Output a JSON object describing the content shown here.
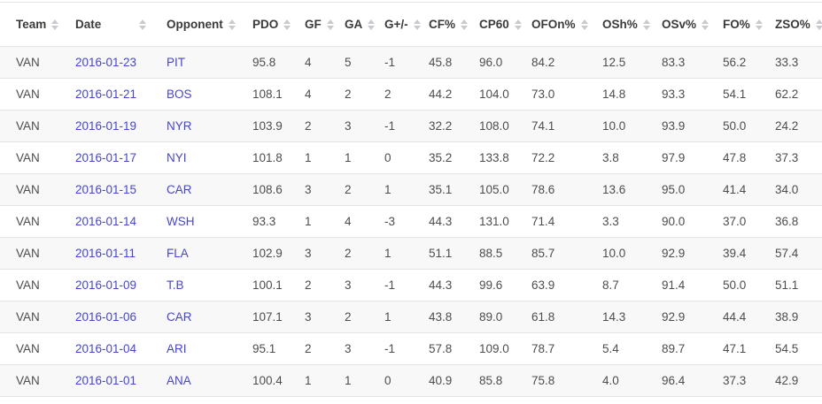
{
  "table": {
    "columns": [
      {
        "key": "team",
        "label": "Team"
      },
      {
        "key": "date",
        "label": "Date"
      },
      {
        "key": "opponent",
        "label": "Opponent"
      },
      {
        "key": "pdo",
        "label": "PDO"
      },
      {
        "key": "gf",
        "label": "GF"
      },
      {
        "key": "ga",
        "label": "GA"
      },
      {
        "key": "g_diff",
        "label": "G+/-"
      },
      {
        "key": "cf_pct",
        "label": "CF%"
      },
      {
        "key": "cp60",
        "label": "CP60"
      },
      {
        "key": "ofon_pct",
        "label": "OFOn%"
      },
      {
        "key": "osh_pct",
        "label": "OSh%"
      },
      {
        "key": "osv_pct",
        "label": "OSv%"
      },
      {
        "key": "fo_pct",
        "label": "FO%"
      },
      {
        "key": "zso_pct",
        "label": "ZSO%"
      }
    ],
    "link_columns": [
      "date",
      "opponent"
    ],
    "rows": [
      {
        "team": "VAN",
        "date": "2016-01-23",
        "opponent": "PIT",
        "pdo": "95.8",
        "gf": "4",
        "ga": "5",
        "g_diff": "-1",
        "cf_pct": "45.8",
        "cp60": "96.0",
        "ofon_pct": "84.2",
        "osh_pct": "12.5",
        "osv_pct": "83.3",
        "fo_pct": "56.2",
        "zso_pct": "33.3"
      },
      {
        "team": "VAN",
        "date": "2016-01-21",
        "opponent": "BOS",
        "pdo": "108.1",
        "gf": "4",
        "ga": "2",
        "g_diff": "2",
        "cf_pct": "44.2",
        "cp60": "104.0",
        "ofon_pct": "73.0",
        "osh_pct": "14.8",
        "osv_pct": "93.3",
        "fo_pct": "54.1",
        "zso_pct": "62.2"
      },
      {
        "team": "VAN",
        "date": "2016-01-19",
        "opponent": "NYR",
        "pdo": "103.9",
        "gf": "2",
        "ga": "3",
        "g_diff": "-1",
        "cf_pct": "32.2",
        "cp60": "108.0",
        "ofon_pct": "74.1",
        "osh_pct": "10.0",
        "osv_pct": "93.9",
        "fo_pct": "50.0",
        "zso_pct": "24.2"
      },
      {
        "team": "VAN",
        "date": "2016-01-17",
        "opponent": "NYI",
        "pdo": "101.8",
        "gf": "1",
        "ga": "1",
        "g_diff": "0",
        "cf_pct": "35.2",
        "cp60": "133.8",
        "ofon_pct": "72.2",
        "osh_pct": "3.8",
        "osv_pct": "97.9",
        "fo_pct": "47.8",
        "zso_pct": "37.3"
      },
      {
        "team": "VAN",
        "date": "2016-01-15",
        "opponent": "CAR",
        "pdo": "108.6",
        "gf": "3",
        "ga": "2",
        "g_diff": "1",
        "cf_pct": "35.1",
        "cp60": "105.0",
        "ofon_pct": "78.6",
        "osh_pct": "13.6",
        "osv_pct": "95.0",
        "fo_pct": "41.4",
        "zso_pct": "34.0"
      },
      {
        "team": "VAN",
        "date": "2016-01-14",
        "opponent": "WSH",
        "pdo": "93.3",
        "gf": "1",
        "ga": "4",
        "g_diff": "-3",
        "cf_pct": "44.3",
        "cp60": "131.0",
        "ofon_pct": "71.4",
        "osh_pct": "3.3",
        "osv_pct": "90.0",
        "fo_pct": "37.0",
        "zso_pct": "36.8"
      },
      {
        "team": "VAN",
        "date": "2016-01-11",
        "opponent": "FLA",
        "pdo": "102.9",
        "gf": "3",
        "ga": "2",
        "g_diff": "1",
        "cf_pct": "51.1",
        "cp60": "88.5",
        "ofon_pct": "85.7",
        "osh_pct": "10.0",
        "osv_pct": "92.9",
        "fo_pct": "39.4",
        "zso_pct": "57.4"
      },
      {
        "team": "VAN",
        "date": "2016-01-09",
        "opponent": "T.B",
        "pdo": "100.1",
        "gf": "2",
        "ga": "3",
        "g_diff": "-1",
        "cf_pct": "44.3",
        "cp60": "99.6",
        "ofon_pct": "63.9",
        "osh_pct": "8.7",
        "osv_pct": "91.4",
        "fo_pct": "50.0",
        "zso_pct": "51.1"
      },
      {
        "team": "VAN",
        "date": "2016-01-06",
        "opponent": "CAR",
        "pdo": "107.1",
        "gf": "3",
        "ga": "2",
        "g_diff": "1",
        "cf_pct": "43.8",
        "cp60": "89.0",
        "ofon_pct": "61.8",
        "osh_pct": "14.3",
        "osv_pct": "92.9",
        "fo_pct": "44.4",
        "zso_pct": "38.9"
      },
      {
        "team": "VAN",
        "date": "2016-01-04",
        "opponent": "ARI",
        "pdo": "95.1",
        "gf": "2",
        "ga": "3",
        "g_diff": "-1",
        "cf_pct": "57.8",
        "cp60": "109.0",
        "ofon_pct": "78.7",
        "osh_pct": "5.4",
        "osv_pct": "89.7",
        "fo_pct": "47.1",
        "zso_pct": "54.5"
      },
      {
        "team": "VAN",
        "date": "2016-01-01",
        "opponent": "ANA",
        "pdo": "100.4",
        "gf": "1",
        "ga": "1",
        "g_diff": "0",
        "cf_pct": "40.9",
        "cp60": "85.8",
        "ofon_pct": "75.8",
        "osh_pct": "4.0",
        "osv_pct": "96.4",
        "fo_pct": "37.3",
        "zso_pct": "42.9"
      }
    ]
  },
  "icons": {
    "sort": "sort-carets-up-down"
  },
  "colors": {
    "link": "#4545d0",
    "header_text": "#3a3a3a",
    "cell_text": "#4d4d4d",
    "stripe": "#f8f8f8",
    "border": "#e4e4e4",
    "sort_icon": "#c9c9ce"
  }
}
